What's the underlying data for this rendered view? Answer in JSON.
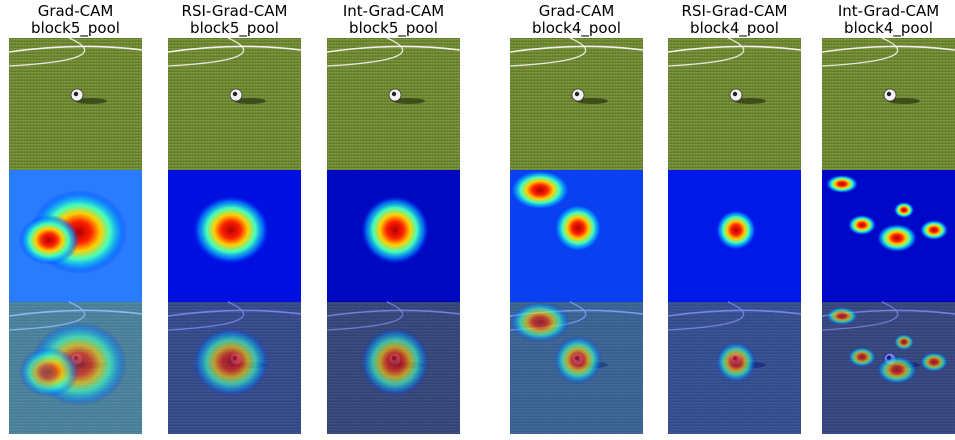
{
  "figure": {
    "columns": [
      {
        "method": "Grad-CAM",
        "layer": "block5_pool"
      },
      {
        "method": "RSI-Grad-CAM",
        "layer": "block5_pool"
      },
      {
        "method": "Int-Grad-CAM",
        "layer": "block5_pool"
      },
      {
        "method": "Grad-CAM",
        "layer": "block4_pool"
      },
      {
        "method": "RSI-Grad-CAM",
        "layer": "block4_pool"
      },
      {
        "method": "Int-Grad-CAM",
        "layer": "block4_pool"
      }
    ]
  }
}
